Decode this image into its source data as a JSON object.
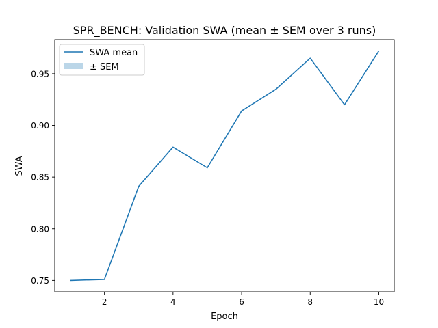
{
  "chart_data": {
    "type": "line",
    "title": "SPR_BENCH: Validation SWA (mean ± SEM over 3 runs)",
    "xlabel": "Epoch",
    "ylabel": "SWA",
    "xlim": [
      0.55,
      10.45
    ],
    "ylim": [
      0.739,
      0.983
    ],
    "xticks": [
      2,
      4,
      6,
      8,
      10
    ],
    "yticks": [
      0.75,
      0.8,
      0.85,
      0.9,
      0.95
    ],
    "ytick_labels": [
      "0.75",
      "0.80",
      "0.85",
      "0.90",
      "0.95"
    ],
    "grid": false,
    "legend_position": "top-left",
    "series": [
      {
        "name": "SWA mean",
        "color": "#1f77b4",
        "x": [
          1,
          2,
          3,
          4,
          5,
          6,
          7,
          8,
          9,
          10
        ],
        "y": [
          0.75,
          0.751,
          0.841,
          0.879,
          0.859,
          0.914,
          0.935,
          0.965,
          0.92,
          0.972
        ]
      }
    ],
    "band": {
      "name": "± SEM",
      "color": "#1f77b4",
      "opacity": 0.3
    }
  }
}
